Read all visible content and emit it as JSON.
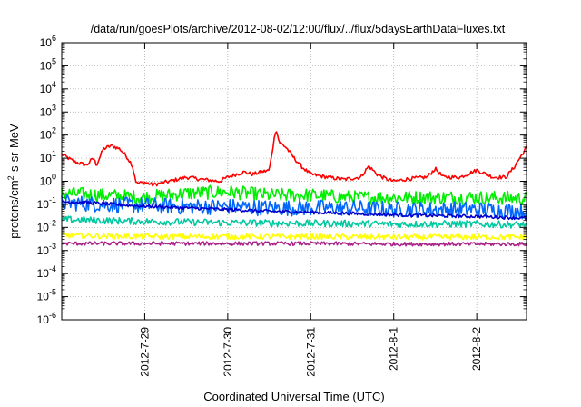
{
  "chart_data": {
    "type": "line",
    "title": "/data/run/goesPlots/archive/2012-08-02/12:00/flux/../flux/5daysEarthDataFluxes.txt",
    "xlabel": "Coordinated Universal Time (UTC)",
    "ylabel_parts": [
      "protons/cm",
      "2",
      "-s-sr-MeV"
    ],
    "yscale": "log",
    "ylim": [
      1e-06,
      1000000.0
    ],
    "xlim": [
      0,
      5.6
    ],
    "grid": true,
    "y_ticks": [
      {
        "base": "10",
        "exp": "-6"
      },
      {
        "base": "10",
        "exp": "-5"
      },
      {
        "base": "10",
        "exp": "-4"
      },
      {
        "base": "10",
        "exp": "-3"
      },
      {
        "base": "10",
        "exp": "-2"
      },
      {
        "base": "10",
        "exp": "-1"
      },
      {
        "base": "10",
        "exp": "0"
      },
      {
        "base": "10",
        "exp": "1"
      },
      {
        "base": "10",
        "exp": "2"
      },
      {
        "base": "10",
        "exp": "3"
      },
      {
        "base": "10",
        "exp": "4"
      },
      {
        "base": "10",
        "exp": "5"
      },
      {
        "base": "10",
        "exp": "6"
      }
    ],
    "x_ticks": [
      {
        "pos": 1,
        "label": "2012-7-29"
      },
      {
        "pos": 2,
        "label": "2012-7-30"
      },
      {
        "pos": 3,
        "label": "2012-7-31"
      },
      {
        "pos": 4,
        "label": "2012-8-1"
      },
      {
        "pos": 5,
        "label": "2012-8-2"
      }
    ],
    "series": [
      {
        "color": "#ff0000",
        "noise_exp": 0.08,
        "x": [
          0,
          0.15,
          0.3,
          0.38,
          0.42,
          0.5,
          0.6,
          0.7,
          0.78,
          0.85,
          0.9,
          1.0,
          1.1,
          1.3,
          1.5,
          1.7,
          1.9,
          2.0,
          2.1,
          2.2,
          2.3,
          2.4,
          2.5,
          2.55,
          2.58,
          2.62,
          2.7,
          2.8,
          2.9,
          3.0,
          3.2,
          3.4,
          3.6,
          3.7,
          3.8,
          3.9,
          4.0,
          4.2,
          4.4,
          4.5,
          4.6,
          4.8,
          5.0,
          5.2,
          5.35,
          5.45,
          5.5,
          5.55,
          5.6
        ],
        "y": [
          15,
          7,
          5,
          10,
          5,
          25,
          35,
          25,
          12,
          5,
          0.8,
          0.9,
          0.7,
          1.0,
          1.5,
          1.2,
          1.0,
          1.5,
          2.0,
          2.5,
          2.0,
          2.5,
          3.0,
          40,
          200,
          50,
          30,
          10,
          4,
          2,
          1.5,
          1.2,
          1.5,
          4.5,
          2.0,
          1.3,
          1.0,
          1.3,
          1.5,
          3.5,
          1.5,
          1.5,
          3.0,
          1.5,
          1.5,
          4.0,
          8.0,
          15,
          30
        ]
      },
      {
        "color": "#00ee00",
        "noise_exp": 0.3,
        "x": [
          0,
          0.5,
          1.0,
          1.5,
          2.0,
          2.5,
          3.0,
          3.5,
          4.0,
          4.5,
          5.0,
          5.6
        ],
        "y": [
          0.3,
          0.25,
          0.2,
          0.3,
          0.35,
          0.25,
          0.25,
          0.2,
          0.2,
          0.2,
          0.2,
          0.18
        ]
      },
      {
        "color": "#0066ff",
        "noise_exp": 0.35,
        "x": [
          0,
          0.5,
          1.0,
          1.5,
          2.0,
          2.5,
          3.0,
          3.5,
          4.0,
          4.5,
          5.0,
          5.6
        ],
        "y": [
          0.12,
          0.1,
          0.09,
          0.08,
          0.08,
          0.07,
          0.07,
          0.07,
          0.06,
          0.06,
          0.06,
          0.05
        ]
      },
      {
        "color": "#0000cc",
        "noise_exp": 0.07,
        "x": [
          0,
          0.3,
          0.8,
          1.5,
          2.0,
          2.5,
          3.0,
          3.5,
          4.0,
          4.5,
          5.0,
          5.6
        ],
        "y": [
          0.13,
          0.12,
          0.09,
          0.07,
          0.06,
          0.05,
          0.045,
          0.04,
          0.035,
          0.032,
          0.03,
          0.025
        ]
      },
      {
        "color": "#00c8a0",
        "noise_exp": 0.15,
        "x": [
          0,
          1.0,
          2.0,
          3.0,
          4.0,
          5.0,
          5.6
        ],
        "y": [
          0.022,
          0.018,
          0.016,
          0.015,
          0.014,
          0.014,
          0.013
        ]
      },
      {
        "color": "#ffff00",
        "noise_exp": 0.12,
        "x": [
          0,
          1.0,
          2.0,
          3.0,
          4.0,
          5.0,
          5.6
        ],
        "y": [
          0.0045,
          0.004,
          0.004,
          0.004,
          0.0038,
          0.0038,
          0.0038
        ]
      },
      {
        "color": "#aa2288",
        "noise_exp": 0.08,
        "x": [
          0,
          1.0,
          2.0,
          3.0,
          4.0,
          5.0,
          5.6
        ],
        "y": [
          0.002,
          0.002,
          0.002,
          0.002,
          0.0019,
          0.0019,
          0.0019
        ]
      }
    ]
  }
}
